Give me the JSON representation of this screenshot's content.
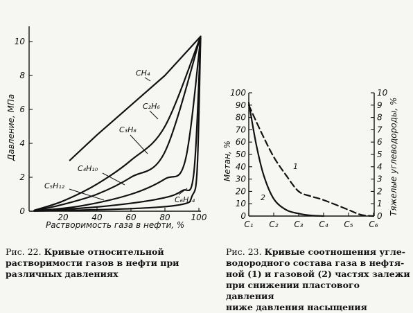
{
  "chart_data": [
    {
      "type": "line",
      "ylabel": "Давление, МПа",
      "xlabel": "Растворимость газа в нефти, %",
      "xlim": [
        0,
        100
      ],
      "ylim": [
        0,
        10.5
      ],
      "x_ticks": [
        "20",
        "40",
        "60",
        "80",
        "100"
      ],
      "y_ticks": [
        "0",
        "2",
        "4",
        "6",
        "8",
        "10"
      ],
      "series": [
        {
          "name": "CH₄",
          "x": [
            24,
            40,
            60,
            80,
            101
          ],
          "y": [
            3.0,
            4.5,
            6.25,
            8.0,
            10.3
          ]
        },
        {
          "name": "C₂H₆",
          "x": [
            3,
            20,
            40,
            60,
            80,
            101
          ],
          "y": [
            0.05,
            0.6,
            1.6,
            3.0,
            5.0,
            10.3
          ]
        },
        {
          "name": "C₃H₈",
          "x": [
            3,
            20,
            40,
            60,
            80,
            101
          ],
          "y": [
            0.02,
            0.4,
            1.0,
            2.0,
            3.5,
            10.3
          ]
        },
        {
          "name": "C₄H₁₀",
          "x": [
            3,
            30,
            60,
            80,
            92,
            101
          ],
          "y": [
            0.02,
            0.3,
            1.0,
            1.9,
            3.0,
            10.2
          ]
        },
        {
          "name": "C₅H₁₂",
          "x": [
            3,
            40,
            75,
            90,
            97,
            101
          ],
          "y": [
            0.02,
            0.25,
            0.7,
            1.2,
            2.2,
            10.2
          ]
        },
        {
          "name": "C₆H₁₄",
          "x": [
            3,
            60,
            90,
            96,
            99,
            101
          ],
          "y": [
            0.01,
            0.15,
            0.4,
            0.9,
            2.5,
            10.2
          ]
        }
      ],
      "caption": {
        "label": "Рис. 22.",
        "text": "Кривые относительной растворимости газов в нефти при различных давлениях"
      }
    },
    {
      "type": "line",
      "ylabel": "Метан, %",
      "y2label": "Тяжелые углеводороды, %",
      "categories": [
        "C₁",
        "C₂",
        "C₃",
        "C₄",
        "C₅",
        "C₆"
      ],
      "ylim": [
        0,
        100
      ],
      "y2lim": [
        0,
        10
      ],
      "y_ticks": [
        "0",
        "10",
        "20",
        "30",
        "40",
        "50",
        "60",
        "70",
        "80",
        "90",
        "100"
      ],
      "y2_ticks": [
        "0",
        "1",
        "2",
        "3",
        "4",
        "5",
        "6",
        "7",
        "8",
        "9",
        "10"
      ],
      "series": [
        {
          "name": "1",
          "style": "dashed",
          "x": [
            1,
            1.5,
            2,
            2.5,
            3,
            3.5,
            4,
            5,
            5.5,
            6
          ],
          "y": [
            90,
            68,
            48,
            33,
            20,
            16,
            13,
            5,
            1,
            0
          ]
        },
        {
          "name": "2",
          "style": "solid",
          "x": [
            1,
            1.3,
            1.6,
            2,
            2.5,
            3,
            3.5,
            4
          ],
          "y": [
            92,
            58,
            33,
            14,
            5,
            2,
            0.5,
            0
          ]
        }
      ],
      "caption": {
        "label": "Рис. 23.",
        "text_lines": [
          "Кривые соотношения угле-",
          "водородного состава газа в нефтя-",
          "ной (1) и газовой (2) частях залежи",
          "при снижении пластового давления",
          "ниже давления насыщения"
        ]
      }
    }
  ]
}
